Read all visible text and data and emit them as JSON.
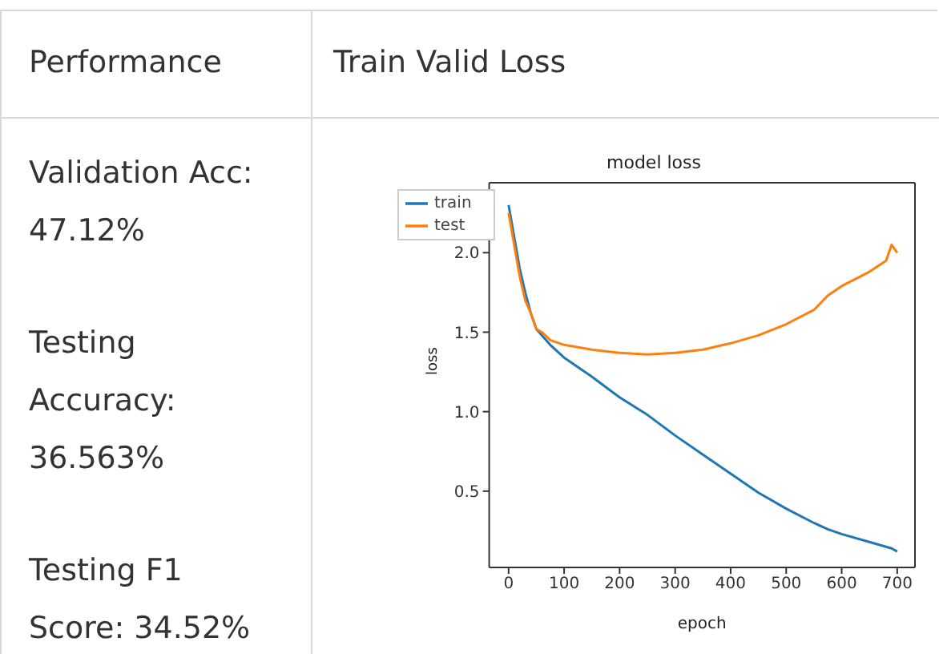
{
  "chart_data": [
    {
      "type": "other",
      "title": "Performance",
      "annotations": [
        "Validation Acc: 47.12%",
        "Testing Accuracy: 36.563%",
        "Testing F1 Score: 34.52%"
      ]
    },
    {
      "type": "line",
      "title": "Train Valid Loss",
      "subtitle": "model loss",
      "xlabel": "epoch",
      "ylabel": "loss",
      "x": [
        0,
        10,
        20,
        30,
        40,
        50,
        60,
        75,
        100,
        150,
        200,
        250,
        300,
        350,
        400,
        450,
        500,
        550,
        575,
        600,
        650,
        680,
        690,
        700
      ],
      "series": [
        {
          "name": "train",
          "color": "#1f77b4",
          "values": [
            2.3,
            2.1,
            1.9,
            1.75,
            1.62,
            1.52,
            1.48,
            1.42,
            1.34,
            1.22,
            1.09,
            0.98,
            0.85,
            0.73,
            0.61,
            0.49,
            0.39,
            0.3,
            0.26,
            0.23,
            0.18,
            0.15,
            0.14,
            0.12
          ]
        },
        {
          "name": "test",
          "color": "#ff7f0e",
          "values": [
            2.25,
            2.05,
            1.85,
            1.7,
            1.62,
            1.52,
            1.5,
            1.45,
            1.42,
            1.39,
            1.37,
            1.36,
            1.37,
            1.39,
            1.43,
            1.48,
            1.55,
            1.64,
            1.73,
            1.79,
            1.88,
            1.95,
            2.05,
            2.0
          ]
        }
      ],
      "xlim": [
        -35,
        732
      ],
      "ylim": [
        0.02,
        2.44
      ],
      "xticks": [
        0,
        100,
        200,
        300,
        400,
        500,
        600,
        700
      ],
      "yticks": [
        0.5,
        {
          "value": 1,
          "label": "1.0"
        },
        1.5,
        {
          "value": 2,
          "label": "2.0"
        }
      ],
      "grid": false,
      "legend": "top left",
      "marker": "none",
      "line_style": "solid"
    }
  ]
}
